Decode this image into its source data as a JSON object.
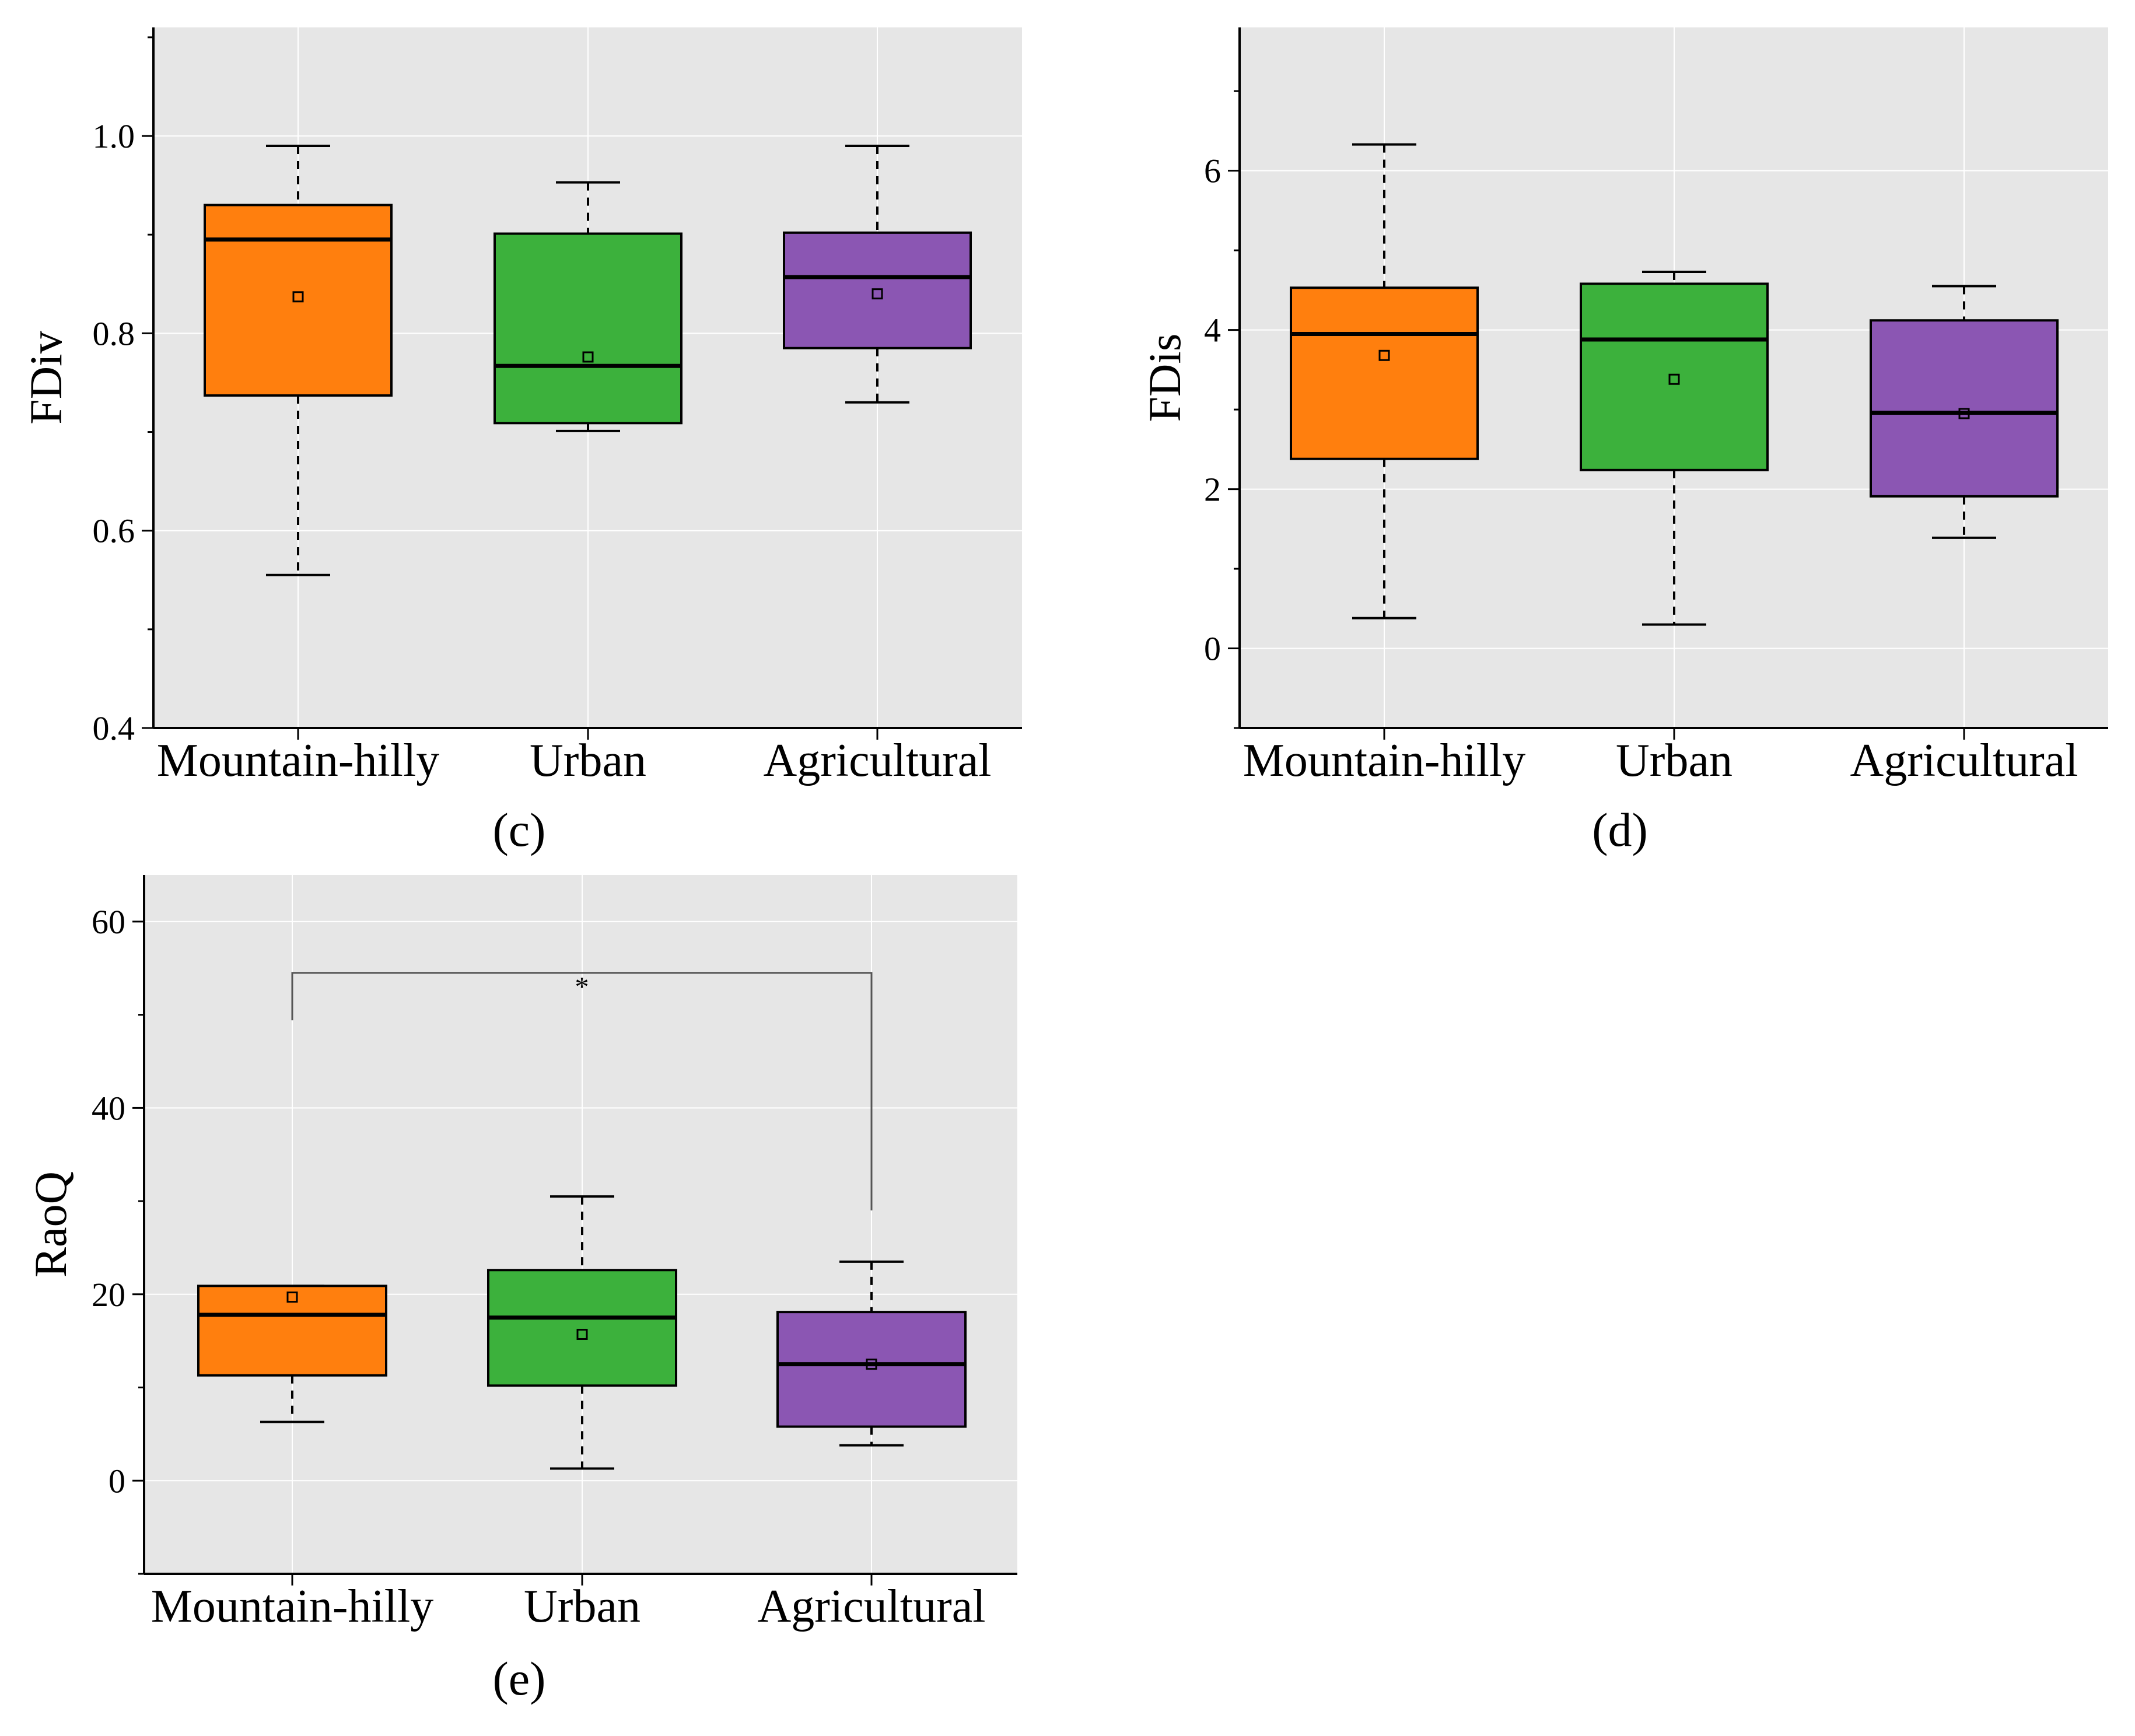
{
  "colors": {
    "plot_background": "#e6e6e6",
    "grid": "#ffffff",
    "mountain_hilly": "#ff7f0e",
    "urban": "#3cb13c",
    "agricultural": "#8b56b3"
  },
  "chart_data": [
    {
      "type": "boxplot",
      "panel_label": "(c)",
      "ylabel": "FDiv",
      "ylim": [
        0.4,
        1.11
      ],
      "yticks": [
        "0.4",
        "0.6",
        "0.8",
        "1.0"
      ],
      "grid": true,
      "categories": [
        "Mountain-hilly",
        "Urban",
        "Agricultural"
      ],
      "boxes": [
        {
          "category": "Mountain-hilly",
          "whisker_low": 0.555,
          "q1": 0.737,
          "median": 0.895,
          "q3": 0.93,
          "whisker_high": 0.99,
          "mean": 0.837
        },
        {
          "category": "Urban",
          "whisker_low": 0.701,
          "q1": 0.709,
          "median": 0.767,
          "q3": 0.901,
          "whisker_high": 0.953,
          "mean": 0.776
        },
        {
          "category": "Agricultural",
          "whisker_low": 0.73,
          "q1": 0.785,
          "median": 0.857,
          "q3": 0.902,
          "whisker_high": 0.99,
          "mean": 0.84
        }
      ]
    },
    {
      "type": "boxplot",
      "panel_label": "(d)",
      "ylabel": "FDis",
      "ylim": [
        -1.0,
        7.8
      ],
      "yticks": [
        "0",
        "2",
        "4",
        "6"
      ],
      "grid": true,
      "categories": [
        "Mountain-hilly",
        "Urban",
        "Agricultural"
      ],
      "boxes": [
        {
          "category": "Mountain-hilly",
          "whisker_low": 0.38,
          "q1": 2.38,
          "median": 3.95,
          "q3": 4.53,
          "whisker_high": 6.33,
          "mean": 3.68
        },
        {
          "category": "Urban",
          "whisker_low": 0.3,
          "q1": 2.24,
          "median": 3.88,
          "q3": 4.58,
          "whisker_high": 4.73,
          "mean": 3.38
        },
        {
          "category": "Agricultural",
          "whisker_low": 1.39,
          "q1": 1.91,
          "median": 2.96,
          "q3": 4.12,
          "whisker_high": 4.55,
          "mean": 2.95
        }
      ]
    },
    {
      "type": "boxplot",
      "panel_label": "(e)",
      "ylabel": "RaoQ",
      "ylim": [
        -10,
        65
      ],
      "yticks": [
        "0",
        "20",
        "40",
        "60"
      ],
      "grid": true,
      "categories": [
        "Mountain-hilly",
        "Urban",
        "Agricultural"
      ],
      "boxes": [
        {
          "category": "Mountain-hilly",
          "whisker_low": 6.3,
          "q1": 11.3,
          "median": 17.8,
          "q3": 20.9,
          "whisker_high": 20.9,
          "mean": 19.7
        },
        {
          "category": "Urban",
          "whisker_low": 1.3,
          "q1": 10.2,
          "median": 17.5,
          "q3": 22.6,
          "whisker_high": 30.5,
          "mean": 15.7
        },
        {
          "category": "Agricultural",
          "whisker_low": 3.8,
          "q1": 5.8,
          "median": 12.5,
          "q3": 18.1,
          "whisker_high": 23.5,
          "mean": 12.5
        }
      ],
      "annotations": [
        {
          "type": "significance",
          "from": "Mountain-hilly",
          "to": "Agricultural",
          "label": "*",
          "y": 54.5
        }
      ]
    }
  ]
}
